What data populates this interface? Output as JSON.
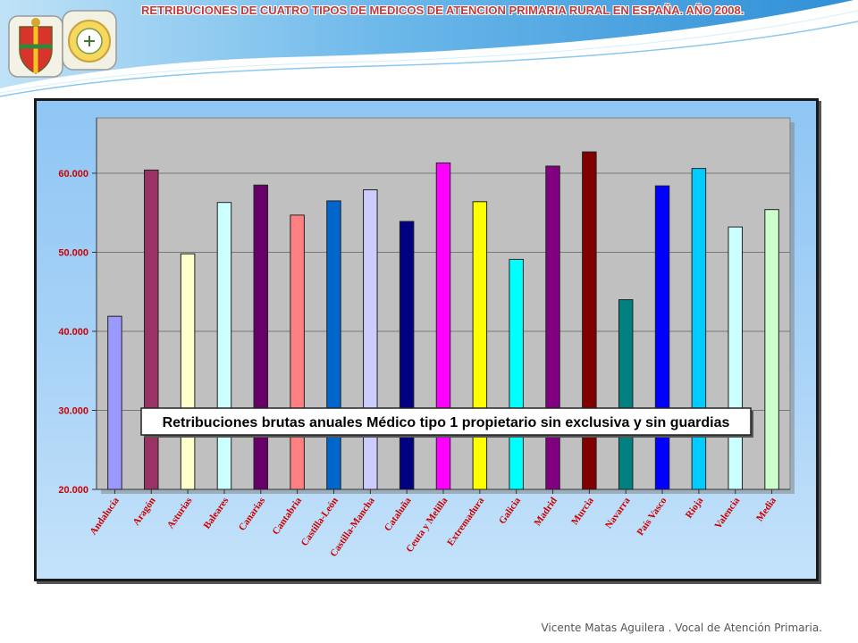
{
  "slide": {
    "title": "RETRIBUCIONES DE CUATRO TIPOS DE MEDICOS DE ATENCION PRIMARIA RURAL EN ESPAÑA. AÑO 2008.",
    "footer": "Vicente Matas Aguilera . Vocal de Atención Primaria."
  },
  "colors": {
    "header_blue": "#3a9be0",
    "title_red": "#c23a3a",
    "plot_bg": "#c0c0c0"
  },
  "chart_data": {
    "type": "bar",
    "title": "Retribuciones brutas anuales Médico tipo 1 propietario sin exclusiva y sin guardias",
    "xlabel": "",
    "ylabel": "",
    "ylim": [
      20000,
      67000
    ],
    "yticks": [
      20000,
      30000,
      40000,
      50000,
      60000
    ],
    "ytick_labels": [
      "20.000",
      "30.000",
      "40.000",
      "50.000",
      "60.000"
    ],
    "grid": true,
    "categories": [
      "Andalucía",
      "Aragón",
      "Asturias",
      "Baleares",
      "Canarias",
      "Cantabria",
      "Castilla-León",
      "Castilla-Mancha",
      "Cataluña",
      "Ceuta y Melilla",
      "Extremadura",
      "Galicia",
      "Madrid",
      "Murcia",
      "Navarra",
      "País Vasco",
      "Rioja",
      "Valencia",
      "Media"
    ],
    "values": [
      41900,
      60400,
      49800,
      56300,
      58500,
      54700,
      56500,
      57900,
      53900,
      61300,
      56400,
      49100,
      60900,
      62700,
      44000,
      58400,
      60600,
      53200,
      55400
    ],
    "bar_colors": [
      "#9999ff",
      "#993366",
      "#ffffcc",
      "#ccffff",
      "#660066",
      "#ff8080",
      "#0066cc",
      "#ccccff",
      "#000080",
      "#ff00ff",
      "#ffff00",
      "#00ffff",
      "#800080",
      "#800000",
      "#008080",
      "#0000ff",
      "#00ccff",
      "#ccffff",
      "#ccffcc"
    ]
  }
}
